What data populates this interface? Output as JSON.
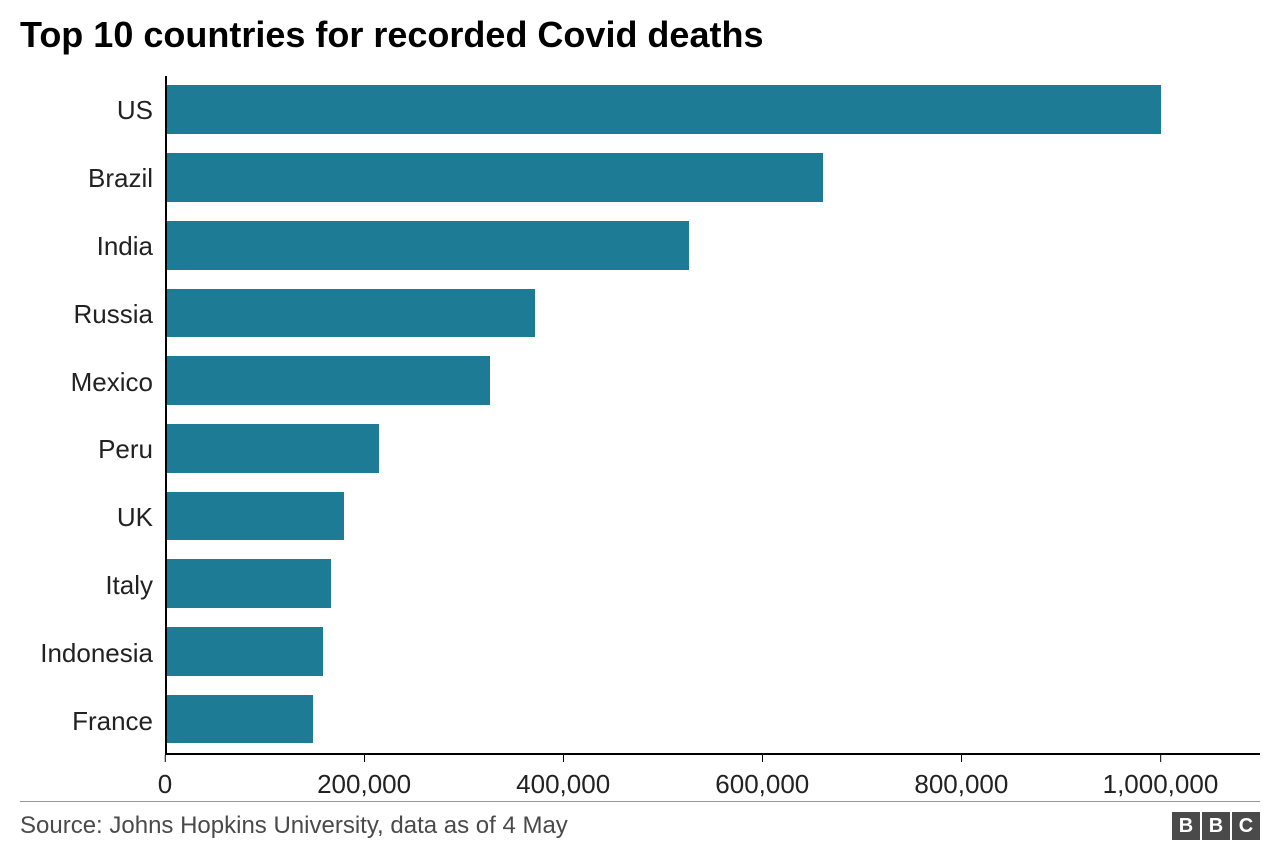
{
  "title": "Top 10 countries for recorded Covid deaths",
  "title_fontsize": 36,
  "chart": {
    "type": "bar-horizontal",
    "bar_color": "#1e7b96",
    "background_color": "#ffffff",
    "axis_color": "#000000",
    "label_color": "#222222",
    "label_fontsize": 26,
    "tick_fontsize": 26,
    "bar_fill_ratio": 0.8,
    "xlim_max": 1100000,
    "x_ticks": [
      {
        "value": 0,
        "label": "0"
      },
      {
        "value": 200000,
        "label": "200,000"
      },
      {
        "value": 400000,
        "label": "400,000"
      },
      {
        "value": 600000,
        "label": "600,000"
      },
      {
        "value": 800000,
        "label": "800,000"
      },
      {
        "value": 1000000,
        "label": "1,000,000"
      }
    ],
    "data": [
      {
        "label": "US",
        "value": 1000000
      },
      {
        "label": "Brazil",
        "value": 660000
      },
      {
        "label": "India",
        "value": 525000
      },
      {
        "label": "Russia",
        "value": 370000
      },
      {
        "label": "Mexico",
        "value": 325000
      },
      {
        "label": "Peru",
        "value": 213000
      },
      {
        "label": "UK",
        "value": 178000
      },
      {
        "label": "Italy",
        "value": 165000
      },
      {
        "label": "Indonesia",
        "value": 157000
      },
      {
        "label": "France",
        "value": 147000
      }
    ]
  },
  "footer": {
    "source": "Source: Johns Hopkins University, data as of 4 May",
    "source_fontsize": 24,
    "source_color": "#4a4a4a",
    "logo_letters": [
      "B",
      "B",
      "C"
    ],
    "logo_block_bg": "#4a4a4a",
    "logo_block_fg": "#ffffff",
    "logo_block_size": 28,
    "logo_fontsize": 20
  }
}
